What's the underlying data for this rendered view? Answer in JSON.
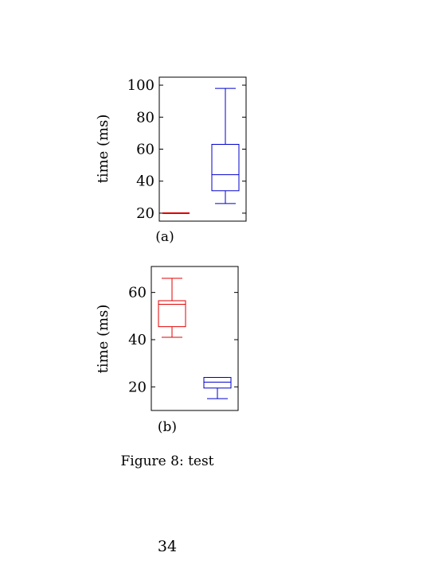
{
  "figure": {
    "caption": "Figure 8: test",
    "page_number": "34"
  },
  "chart_data": [
    {
      "type": "boxplot",
      "subcaption": "(a)",
      "ylabel": "time (ms)",
      "ylim": [
        15,
        105
      ],
      "yticks": [
        20,
        40,
        60,
        80,
        100
      ],
      "grid": false,
      "series": [
        {
          "color": "#e00000",
          "min": 20,
          "q1": 20,
          "median": 20,
          "q3": 20,
          "max": 20
        },
        {
          "color": "#0000cc",
          "min": 26,
          "q1": 34,
          "median": 44,
          "q3": 63,
          "max": 98
        }
      ]
    },
    {
      "type": "boxplot",
      "subcaption": "(b)",
      "ylabel": "time (ms)",
      "ylim": [
        10,
        71
      ],
      "yticks": [
        20,
        40,
        60
      ],
      "grid": false,
      "series": [
        {
          "color": "#e00000",
          "min": 41,
          "q1": 45.5,
          "median": 55,
          "q3": 56.5,
          "max": 66
        },
        {
          "color": "#0000cc",
          "min": 15,
          "q1": 19.5,
          "median": 22,
          "q3": 24,
          "max": 24
        }
      ]
    }
  ]
}
